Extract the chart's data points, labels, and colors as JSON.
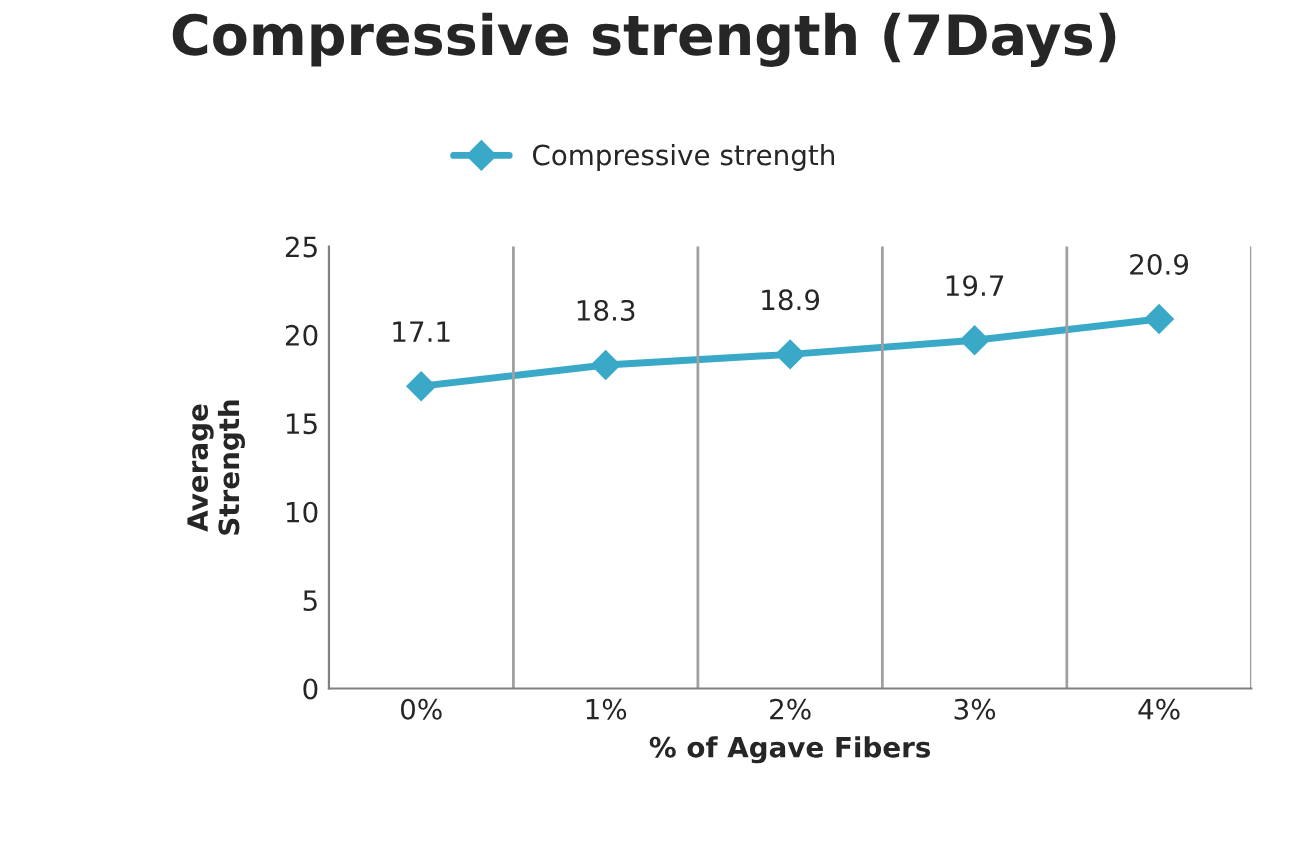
{
  "chart_data": {
    "type": "line",
    "title": "Compressive strength (7Days)",
    "xlabel": "% of Agave Fibers",
    "ylabel": "Average\nStrength",
    "categories": [
      "0%",
      "1%",
      "2%",
      "3%",
      "4%"
    ],
    "series": [
      {
        "name": "Compressive strength",
        "color": "#3aa9c8",
        "values": [
          17.1,
          18.3,
          18.9,
          19.7,
          20.9
        ]
      }
    ],
    "ylim": [
      0,
      25
    ],
    "yticks": [
      0,
      5,
      10,
      15,
      20,
      25
    ],
    "grid": "x",
    "legend": "top",
    "marker": "diamond",
    "line_style": "solid",
    "data_labels": true
  }
}
